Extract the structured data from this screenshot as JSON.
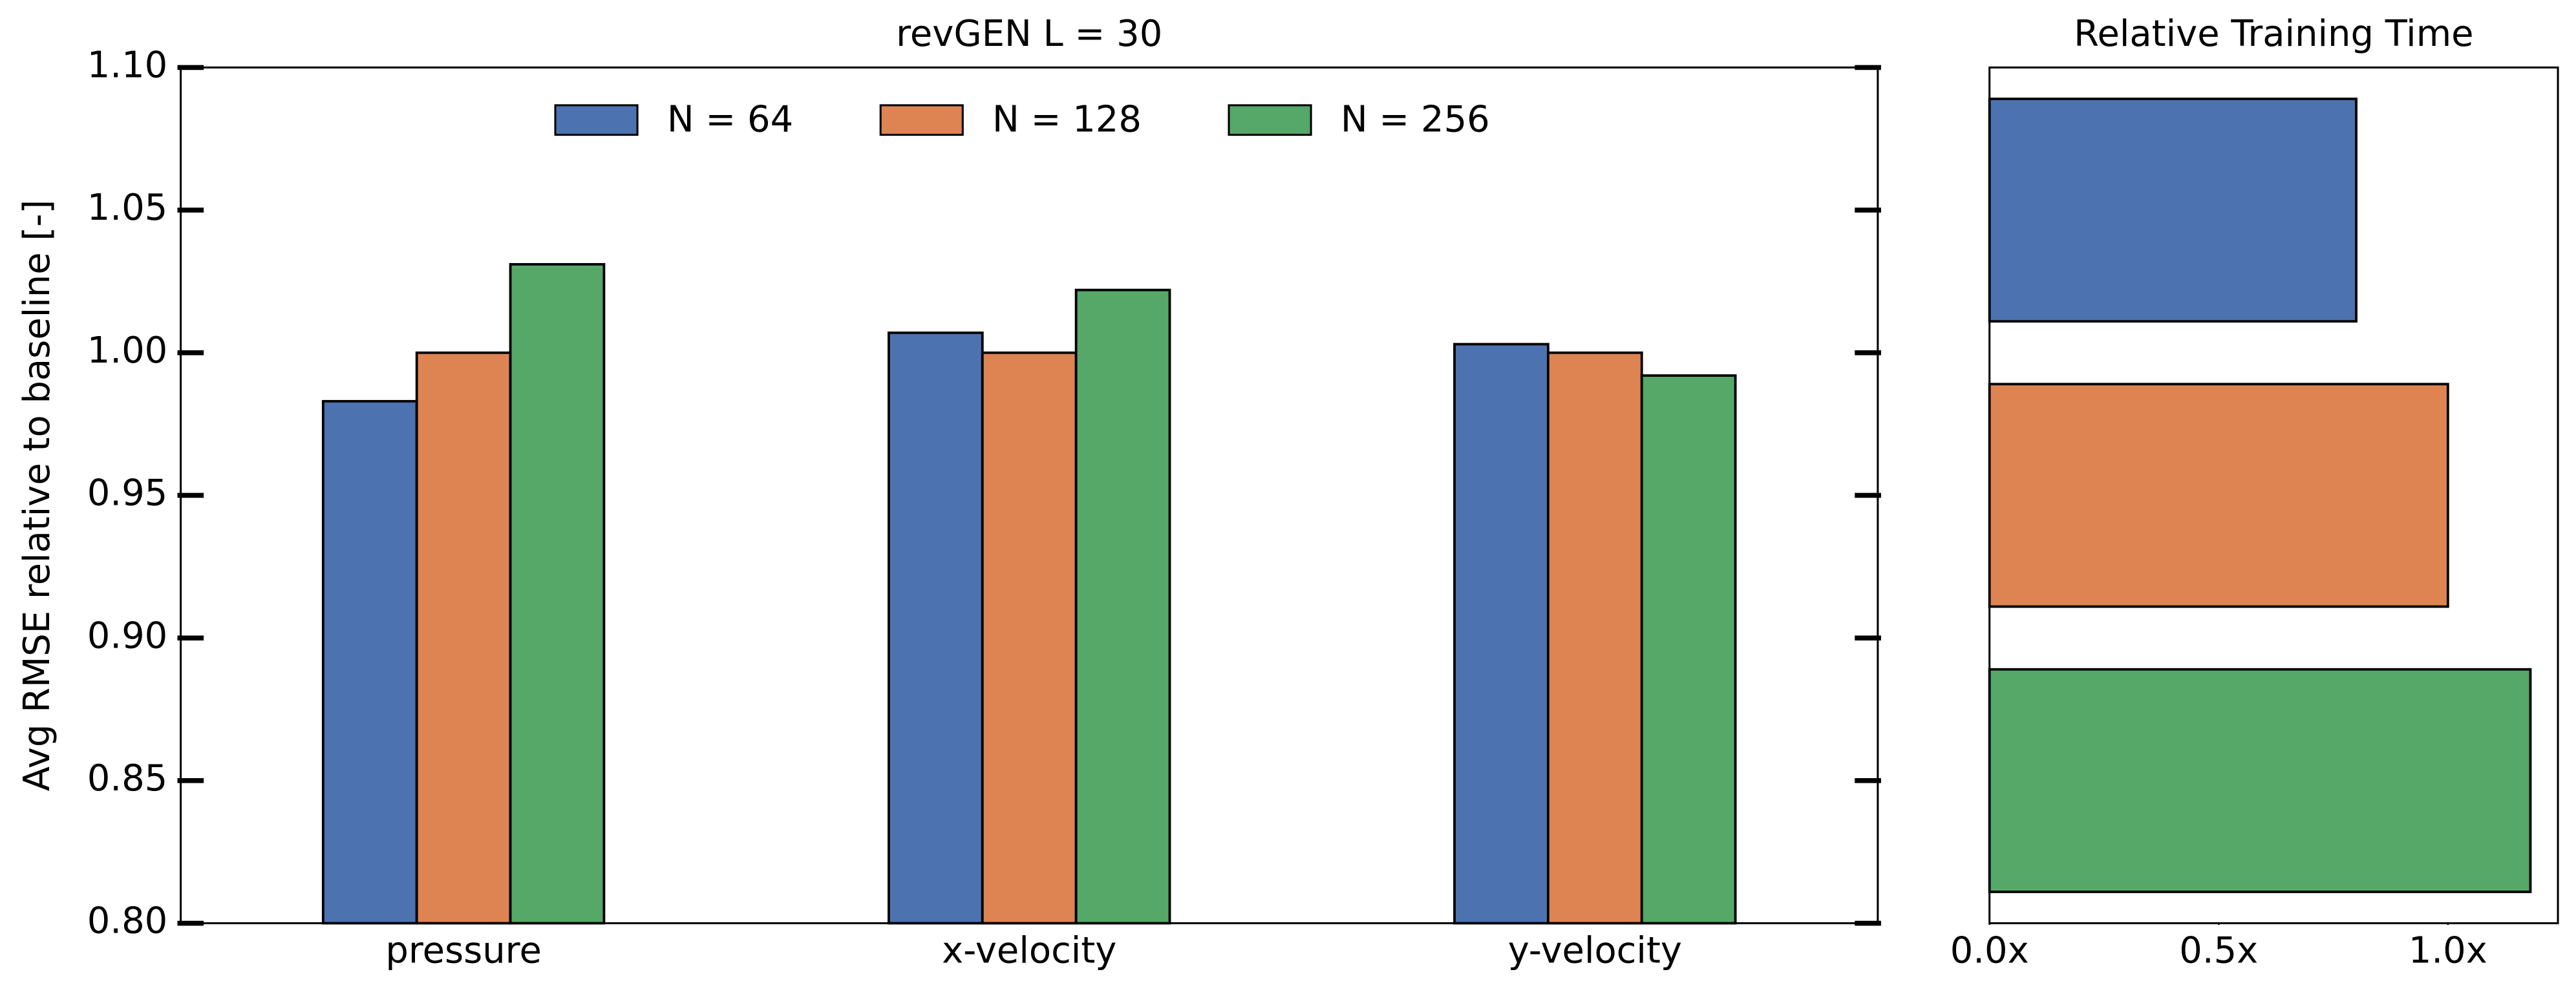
{
  "chart_data": [
    {
      "type": "bar",
      "title": "revGEN L = 30",
      "y_label": "Avg RMSE relative to baseline [-]",
      "categories": [
        "pressure",
        "x-velocity",
        "y-velocity"
      ],
      "series": [
        {
          "name": "N = 64",
          "color": "#4c72b0",
          "values": [
            0.983,
            1.007,
            1.003
          ]
        },
        {
          "name": "N = 128",
          "color": "#dd8452",
          "values": [
            1.0,
            1.0,
            1.0
          ]
        },
        {
          "name": "N = 256",
          "color": "#55a868",
          "values": [
            1.031,
            1.022,
            0.992
          ]
        }
      ],
      "ylim": [
        0.8,
        1.1
      ],
      "yticks": [
        {
          "value": 0.8,
          "label": "0.80"
        },
        0.85,
        {
          "value": 0.9,
          "label": "0.90"
        },
        0.95,
        {
          "value": 1.0,
          "label": "1.00"
        },
        1.05,
        {
          "value": 1.1,
          "label": "1.10"
        }
      ],
      "legend": "upper center"
    },
    {
      "type": "hbar",
      "title": "Relative Training Time",
      "categories": [
        null,
        null,
        null
      ],
      "values": [
        0.8,
        1.0,
        1.18
      ],
      "colors": [
        "#4c72b0",
        "#dd8452",
        "#55a868"
      ],
      "xlim": [
        0,
        1.24
      ],
      "xticks": [
        {
          "value": 0,
          "label": "0.0x"
        },
        {
          "value": 0.5,
          "label": "0.5x"
        },
        {
          "value": 1.0,
          "label": "1.0x"
        }
      ]
    }
  ]
}
